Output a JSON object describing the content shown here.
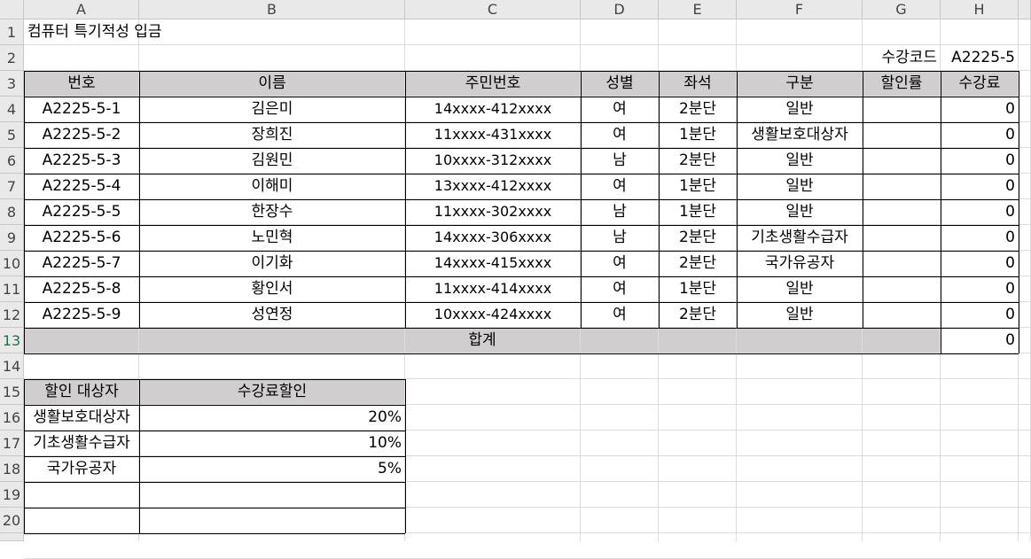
{
  "columns": [
    "A",
    "B",
    "C",
    "D",
    "E",
    "F",
    "G",
    "H"
  ],
  "rows": [
    "1",
    "2",
    "3",
    "4",
    "5",
    "6",
    "7",
    "8",
    "9",
    "10",
    "11",
    "12",
    "13",
    "14",
    "15",
    "16",
    "17",
    "18",
    "19",
    "20"
  ],
  "title": "컴퓨터 특기적성 입금",
  "course_code_label": "수강코드",
  "course_code_value": "A2225-5",
  "table_headers": [
    "번호",
    "이름",
    "주민번호",
    "성별",
    "좌석",
    "구분",
    "할인률",
    "수강료"
  ],
  "students": [
    {
      "no": "A2225-5-1",
      "name": "김은미",
      "id": "14xxxx-412xxxx",
      "gender": "여",
      "seat": "2분단",
      "type": "일반",
      "discount": "",
      "fee": "0"
    },
    {
      "no": "A2225-5-2",
      "name": "장희진",
      "id": "11xxxx-431xxxx",
      "gender": "여",
      "seat": "1분단",
      "type": "생활보호대상자",
      "discount": "",
      "fee": "0"
    },
    {
      "no": "A2225-5-3",
      "name": "김원민",
      "id": "10xxxx-312xxxx",
      "gender": "남",
      "seat": "2분단",
      "type": "일반",
      "discount": "",
      "fee": "0"
    },
    {
      "no": "A2225-5-4",
      "name": "이해미",
      "id": "13xxxx-412xxxx",
      "gender": "여",
      "seat": "1분단",
      "type": "일반",
      "discount": "",
      "fee": "0"
    },
    {
      "no": "A2225-5-5",
      "name": "한장수",
      "id": "11xxxx-302xxxx",
      "gender": "남",
      "seat": "1분단",
      "type": "일반",
      "discount": "",
      "fee": "0"
    },
    {
      "no": "A2225-5-6",
      "name": "노민혁",
      "id": "14xxxx-306xxxx",
      "gender": "남",
      "seat": "2분단",
      "type": "기초생활수급자",
      "discount": "",
      "fee": "0"
    },
    {
      "no": "A2225-5-7",
      "name": "이기화",
      "id": "14xxxx-415xxxx",
      "gender": "여",
      "seat": "2분단",
      "type": "국가유공자",
      "discount": "",
      "fee": "0"
    },
    {
      "no": "A2225-5-8",
      "name": "황인서",
      "id": "11xxxx-414xxxx",
      "gender": "여",
      "seat": "1분단",
      "type": "일반",
      "discount": "",
      "fee": "0"
    },
    {
      "no": "A2225-5-9",
      "name": "성연정",
      "id": "10xxxx-424xxxx",
      "gender": "여",
      "seat": "2분단",
      "type": "일반",
      "discount": "",
      "fee": "0"
    }
  ],
  "total_label": "합계",
  "total_value": "0",
  "discount_table": {
    "headers": [
      "할인 대상자",
      "수강료할인"
    ],
    "rows": [
      {
        "target": "생활보호대상자",
        "rate": "20%"
      },
      {
        "target": "기초생활수급자",
        "rate": "10%"
      },
      {
        "target": "국가유공자",
        "rate": "5%"
      }
    ]
  },
  "colors": {
    "header_fill": "#d0cece",
    "active_row_header": "#217346"
  }
}
